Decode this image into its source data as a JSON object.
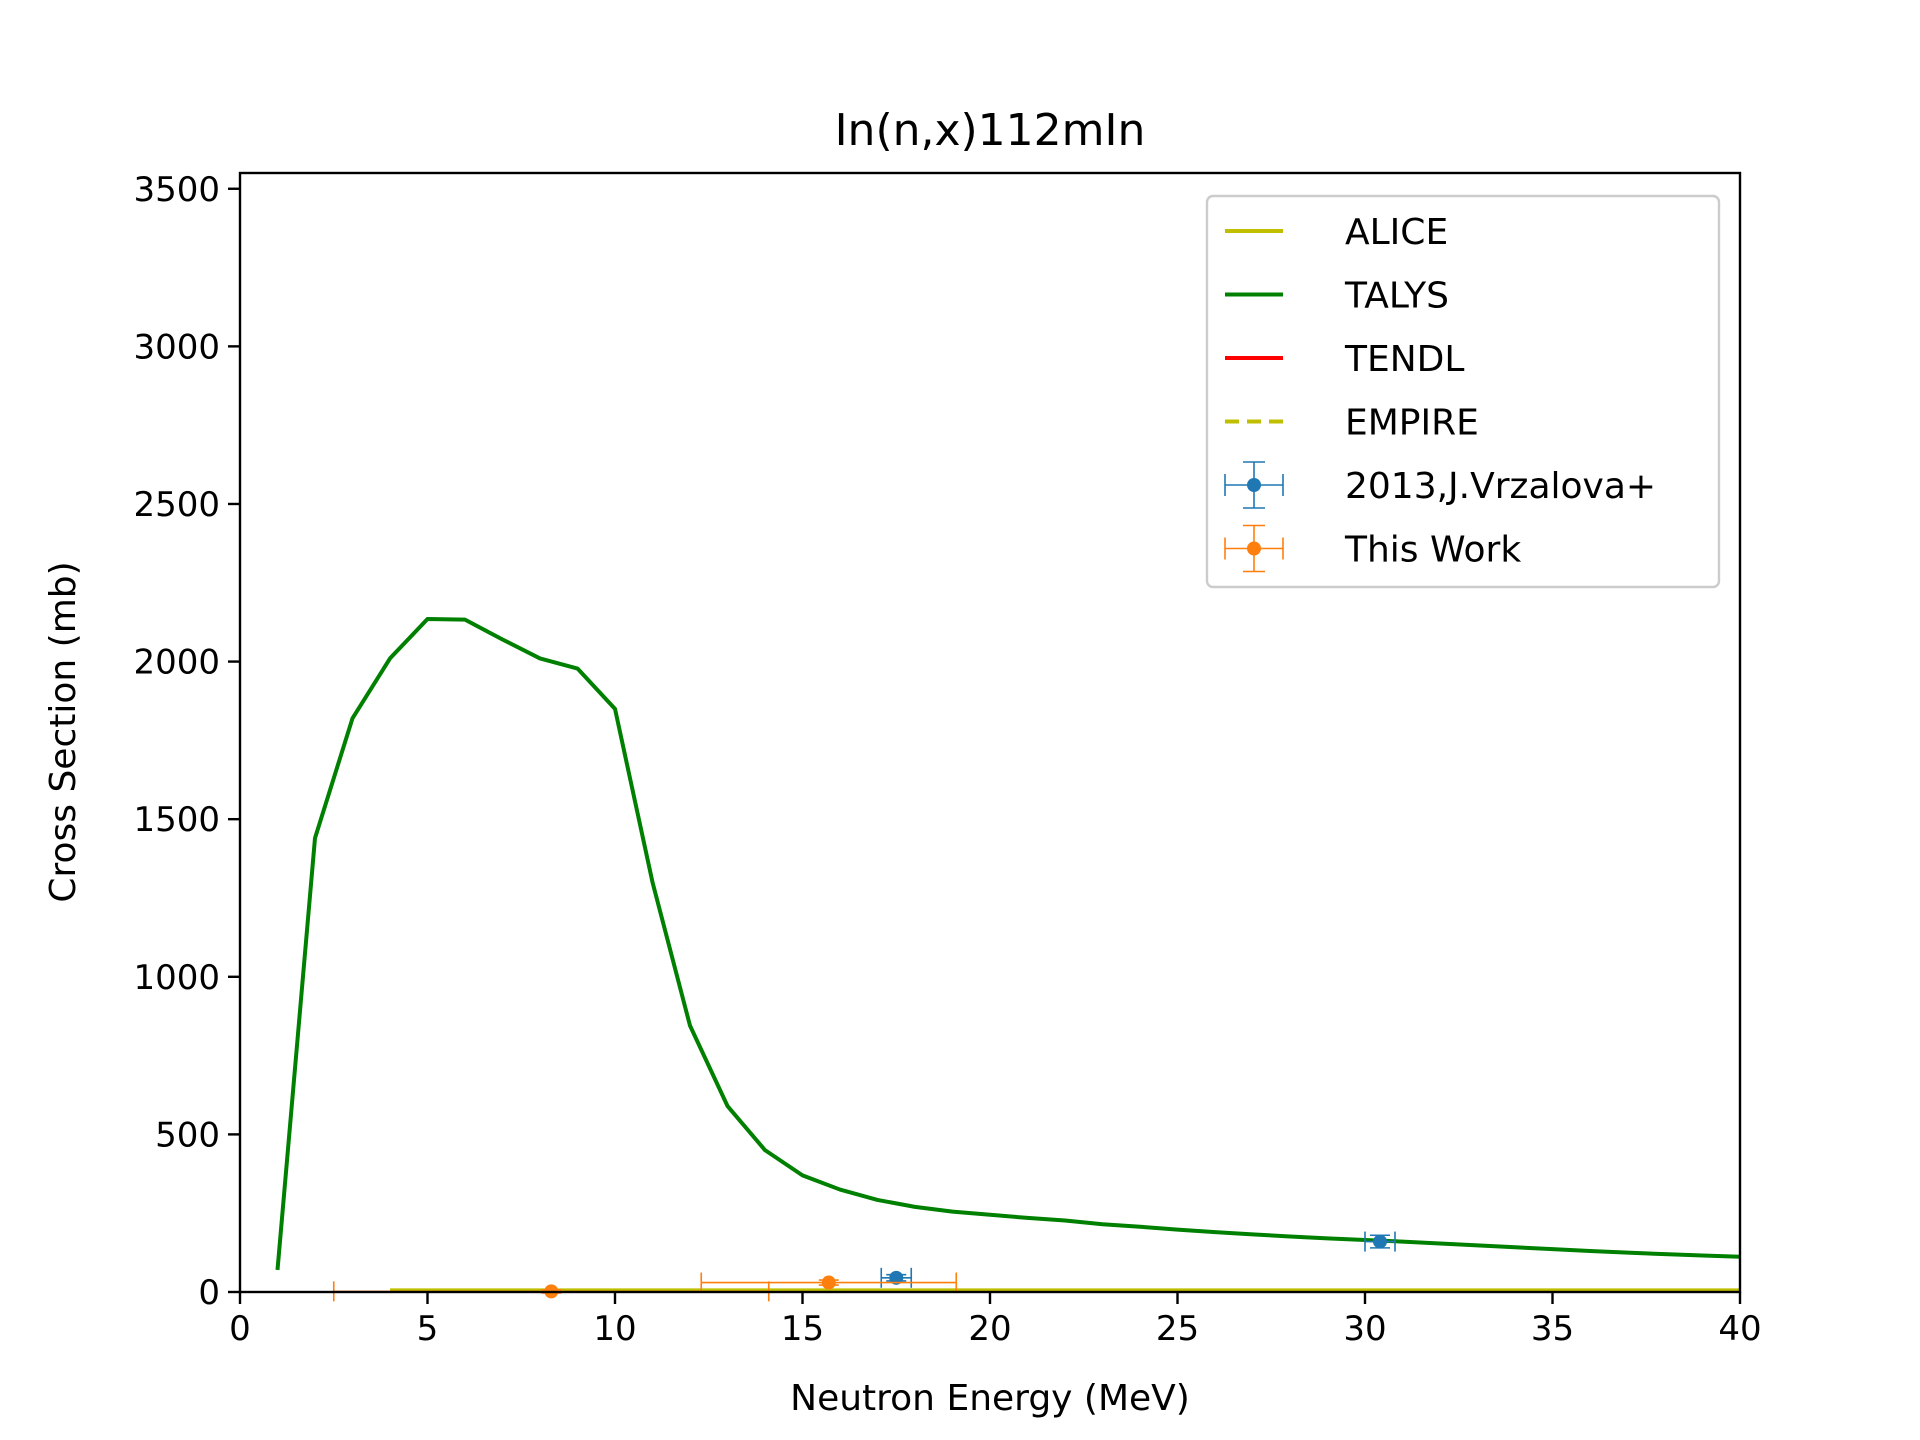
{
  "chart_data": {
    "type": "line",
    "title": "In(n,x)112mIn",
    "xlabel": "Neutron Energy (MeV)",
    "ylabel": "Cross Section (mb)",
    "xlim": [
      0,
      40
    ],
    "ylim": [
      0,
      3550
    ],
    "xticks": [
      "0",
      "5",
      "10",
      "15",
      "20",
      "25",
      "30",
      "35",
      "40"
    ],
    "yticks": [
      "0",
      "500",
      "1000",
      "1500",
      "2000",
      "2500",
      "3000",
      "3500"
    ],
    "grid": false,
    "legend_position": "top-right",
    "series": [
      {
        "name": "ALICE",
        "style": "solid",
        "color": "#bfbf00",
        "x": [
          4,
          40
        ],
        "y": [
          5,
          5
        ]
      },
      {
        "name": "TALYS",
        "style": "solid",
        "color": "#008000",
        "x": [
          1,
          2,
          3,
          4,
          5,
          6,
          7,
          8,
          9,
          10,
          11,
          12,
          13,
          14,
          15,
          16,
          17,
          18,
          19,
          20,
          21,
          22,
          23,
          24,
          25,
          26,
          27,
          28,
          29,
          30,
          31,
          32,
          33,
          34,
          35,
          36,
          37,
          38,
          39,
          40
        ],
        "y": [
          70,
          1440,
          1820,
          2010,
          2135,
          2133,
          2070,
          2010,
          1978,
          1850,
          1300,
          845,
          590,
          450,
          370,
          325,
          292,
          270,
          255,
          245,
          235,
          227,
          215,
          207,
          198,
          190,
          183,
          176,
          170,
          165,
          160,
          154,
          148,
          142,
          136,
          130,
          125,
          120,
          116,
          112
        ]
      },
      {
        "name": "TENDL",
        "style": "solid",
        "color": "#ff0000",
        "x": [],
        "y": []
      },
      {
        "name": "EMPIRE",
        "style": "dashed",
        "color": "#bfbf00",
        "x": [],
        "y": []
      },
      {
        "name": "2013,J.Vrzalova+",
        "style": "errorbar",
        "color": "#1f77b4",
        "points": [
          {
            "x": 17.5,
            "y": 45,
            "xerr": 0.4,
            "yerr": 10
          },
          {
            "x": 30.4,
            "y": 160,
            "xerr": 0.4,
            "yerr": 20
          }
        ]
      },
      {
        "name": "This Work",
        "style": "errorbar",
        "color": "#ff7f0e",
        "points": [
          {
            "x": 15.7,
            "y": 30,
            "xerr": 3.4,
            "yerr": 8
          },
          {
            "x": 8.3,
            "y": 2,
            "xerr": 5.8,
            "yerr": 5
          }
        ]
      }
    ]
  }
}
